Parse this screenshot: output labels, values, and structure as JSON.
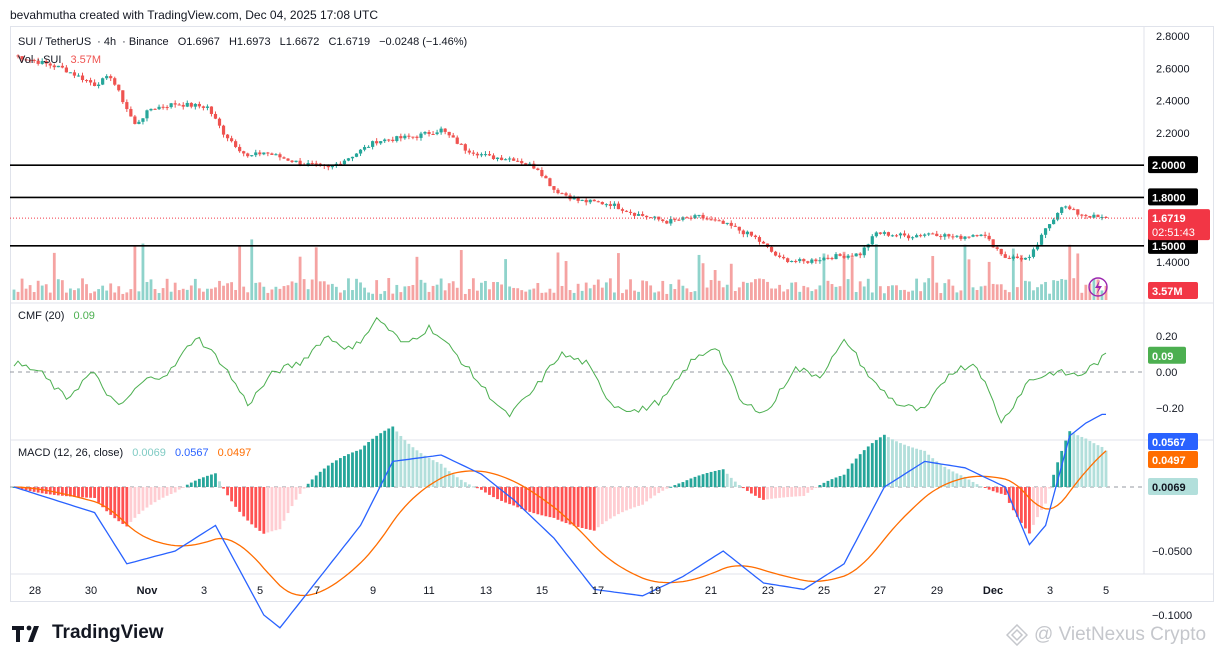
{
  "header": {
    "created_by": "bevahmutha created with TradingView.com, Dec 04, 2025 17:08 UTC"
  },
  "symbol": {
    "pair": "SUI / TetherUS",
    "interval": "4h",
    "exchange": "Binance",
    "open": "O1.6967",
    "high": "H1.6973",
    "low": "L1.6672",
    "close": "C1.6719",
    "change": "−0.0248 (−1.46%)"
  },
  "volume_legend": {
    "label": "Vol · SUI",
    "value": "3.57M"
  },
  "cmf_legend": {
    "label": "CMF (20)",
    "value": "0.09"
  },
  "macd_legend": {
    "label": "MACD (12, 26, close)",
    "hist": "0.0069",
    "macd": "0.0567",
    "signal": "0.0497"
  },
  "price_axis": {
    "ticks": [
      "2.8000",
      "2.6000",
      "2.4000",
      "2.2000",
      "1.4000"
    ],
    "level_labels": [
      "2.0000",
      "1.8000",
      "1.5000"
    ],
    "last_price": "1.6719",
    "countdown": "02:51:43",
    "volume_badge": "3.57M"
  },
  "cmf_axis": {
    "ticks": [
      "0.20",
      "0.00",
      "−0.20"
    ],
    "badge": "0.09"
  },
  "macd_axis": {
    "ticks": [
      "−0.0500",
      "−0.1000"
    ],
    "macd_badge": "0.0567",
    "signal_badge": "0.0497",
    "hist_badge": "0.0069"
  },
  "time_axis": {
    "labels": [
      "28",
      "30",
      "Nov",
      "3",
      "5",
      "7",
      "9",
      "11",
      "13",
      "15",
      "17",
      "19",
      "21",
      "23",
      "25",
      "27",
      "29",
      "Dec",
      "3",
      "5"
    ]
  },
  "footer": {
    "logo": "TradingView",
    "watermark": "@ VietNexus Crypto"
  },
  "colors": {
    "up": "#26a69a",
    "down": "#ef5350",
    "vol_up": "#8fd3cb",
    "vol_down": "#f5a3a2",
    "cmf": "#4caf50",
    "macd": "#2962ff",
    "signal": "#ff6d00",
    "hist_up_strong": "#26a69a",
    "hist_up_weak": "#b2dfdb",
    "hist_down_strong": "#ff5252",
    "hist_down_weak": "#ffcdd2",
    "level": "#000000",
    "last": "#f23645",
    "cmf_badge": "#4caf50"
  },
  "chart_data": [
    {
      "type": "candlestick",
      "title": "SUI / TetherUS · 4h · Binance",
      "levels": [
        2.0,
        1.8,
        1.5
      ],
      "ylim": [
        1.3,
        2.84
      ],
      "last": 1.6719,
      "close_path": [
        [
          0,
          2.68
        ],
        [
          12,
          2.6
        ],
        [
          20,
          2.5
        ],
        [
          24,
          2.55
        ],
        [
          30,
          2.25
        ],
        [
          34,
          2.35
        ],
        [
          40,
          2.38
        ],
        [
          48,
          2.36
        ],
        [
          52,
          2.2
        ],
        [
          58,
          2.05
        ],
        [
          62,
          2.08
        ],
        [
          70,
          2.02
        ],
        [
          78,
          1.98
        ],
        [
          84,
          2.06
        ],
        [
          90,
          2.15
        ],
        [
          100,
          2.18
        ],
        [
          106,
          2.22
        ],
        [
          112,
          2.1
        ],
        [
          118,
          2.05
        ],
        [
          124,
          2.04
        ],
        [
          130,
          1.98
        ],
        [
          134,
          1.85
        ],
        [
          140,
          1.78
        ],
        [
          148,
          1.76
        ],
        [
          154,
          1.7
        ],
        [
          162,
          1.65
        ],
        [
          170,
          1.68
        ],
        [
          178,
          1.62
        ],
        [
          184,
          1.55
        ],
        [
          190,
          1.42
        ],
        [
          196,
          1.4
        ],
        [
          202,
          1.43
        ],
        [
          210,
          1.45
        ],
        [
          214,
          1.58
        ],
        [
          222,
          1.56
        ],
        [
          228,
          1.58
        ],
        [
          234,
          1.55
        ],
        [
          240,
          1.58
        ],
        [
          246,
          1.43
        ],
        [
          252,
          1.42
        ],
        [
          256,
          1.6
        ],
        [
          260,
          1.75
        ],
        [
          264,
          1.7
        ],
        [
          270,
          1.67
        ]
      ]
    },
    {
      "type": "bar",
      "title": "Vol · SUI",
      "last": 3.57
    },
    {
      "type": "line",
      "title": "CMF (20)",
      "ylim": [
        -0.3,
        0.35
      ],
      "last": 0.09,
      "values": [
        0.05,
        0.0,
        -0.15,
        0.0,
        -0.2,
        -0.05,
        0.0,
        0.2,
        0.05,
        -0.18,
        0.0,
        0.05,
        0.2,
        0.12,
        0.3,
        0.15,
        0.25,
        0.1,
        -0.08,
        -0.25,
        -0.1,
        0.1,
        0.05,
        -0.18,
        -0.22,
        -0.15,
        0.05,
        0.15,
        -0.18,
        -0.22,
        0.02,
        -0.02,
        0.18,
        -0.05,
        -0.18,
        -0.22,
        0.0,
        0.05,
        -0.28,
        -0.05,
        0.0,
        -0.02,
        0.09
      ]
    },
    {
      "type": "line",
      "title": "MACD (12, 26, close)",
      "ylim": [
        -0.12,
        0.07
      ],
      "series": [
        {
          "name": "MACD",
          "last": 0.0567
        },
        {
          "name": "Signal",
          "last": 0.0497
        },
        {
          "name": "Histogram",
          "last": 0.0069
        }
      ]
    }
  ]
}
